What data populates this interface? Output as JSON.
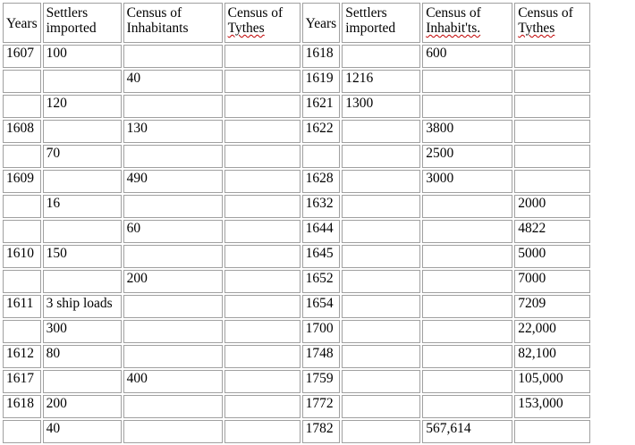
{
  "headers": {
    "left_years": "Years",
    "left_settlers": [
      "Settlers",
      "imported"
    ],
    "left_census_inhabitants": [
      "Census of",
      "Inhabitants"
    ],
    "left_census_tythes": [
      "Census of",
      "Tythes"
    ],
    "right_years": "Years",
    "right_settlers": [
      "Settlers",
      "imported"
    ],
    "right_census_inhabitants": [
      "Census of",
      "Inhabit'ts."
    ],
    "right_census_tythes": [
      "Census of",
      "Tythes"
    ]
  },
  "rows": [
    [
      "1607",
      "100",
      "",
      "",
      "1618",
      "",
      "600",
      ""
    ],
    [
      "",
      "",
      "40",
      "",
      "1619",
      "1216",
      "",
      ""
    ],
    [
      "",
      "120",
      "",
      "",
      "1621",
      "1300",
      "",
      ""
    ],
    [
      "1608",
      "",
      "130",
      "",
      "1622",
      "",
      "3800",
      ""
    ],
    [
      "",
      "70",
      "",
      "",
      "",
      "",
      "2500",
      ""
    ],
    [
      "1609",
      "",
      "490",
      "",
      "1628",
      "",
      "3000",
      ""
    ],
    [
      "",
      "16",
      "",
      "",
      "1632",
      "",
      "",
      "2000"
    ],
    [
      "",
      "",
      "60",
      "",
      "1644",
      "",
      "",
      "4822"
    ],
    [
      "1610",
      "150",
      "",
      "",
      "1645",
      "",
      "",
      "5000"
    ],
    [
      "",
      "",
      "200",
      "",
      "1652",
      "",
      "",
      "7000"
    ],
    [
      "1611",
      "3 ship loads",
      "",
      "",
      "1654",
      "",
      "",
      "7209"
    ],
    [
      "",
      "300",
      "",
      "",
      "1700",
      "",
      "",
      "22,000"
    ],
    [
      "1612",
      "80",
      "",
      "",
      "1748",
      "",
      "",
      "82,100"
    ],
    [
      "1617",
      "",
      "400",
      "",
      "1759",
      "",
      "",
      "105,000"
    ],
    [
      "1618",
      "200",
      "",
      "",
      "1772",
      "",
      "",
      "153,000"
    ],
    [
      "",
      "40",
      "",
      "",
      "1782",
      "",
      "567,614",
      ""
    ]
  ]
}
